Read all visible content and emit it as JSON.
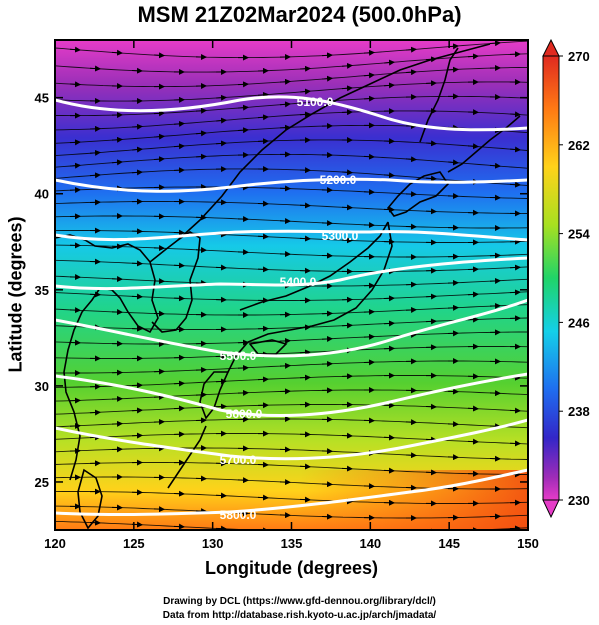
{
  "title": "MSM 21Z02Mar2024 (500.0hPa)",
  "xaxis": {
    "label": "Longitude (degrees)",
    "ticks": [
      "120",
      "125",
      "130",
      "135",
      "140",
      "145",
      "150"
    ]
  },
  "yaxis": {
    "label": "Latitude  (degrees)",
    "ticks": [
      "25",
      "30",
      "35",
      "40",
      "45"
    ]
  },
  "colorbar": {
    "ticks": [
      "270",
      "262",
      "254",
      "246",
      "238",
      "230"
    ],
    "range": [
      230,
      270
    ]
  },
  "contours": {
    "labels": [
      "5100.0",
      "5200.0",
      "5300.0",
      "5400.0",
      "5500.0",
      "5600.0",
      "5700.0",
      "5800.0"
    ]
  },
  "credits": {
    "line1": "Drawing by DCL (https://www.gfd-dennou.org/library/dcl/)",
    "line2": "Data from http://database.rish.kyoto-u.ac.jp/arch/jmadata/"
  },
  "chart_data": {
    "type": "heatmap",
    "field": "temperature with geopotential height contours and wind vectors",
    "xlim": [
      120,
      150
    ],
    "ylim": [
      22.5,
      48
    ],
    "color_range": [
      230,
      270
    ],
    "contours": [
      {
        "label": "5100.0",
        "lat_west": 45.2,
        "lat_east": 44.0
      },
      {
        "label": "5200.0",
        "lat_west": 41.5,
        "lat_east": 41.3
      },
      {
        "label": "5300.0",
        "lat_west": 38.7,
        "lat_east": 39.0
      },
      {
        "label": "5400.0",
        "lat_west": 35.8,
        "lat_east": 36.9
      },
      {
        "label": "5500.0",
        "lat_west": 33.8,
        "lat_east": 33.2
      },
      {
        "label": "5600.0",
        "lat_west": 31.5,
        "lat_east": 30.7
      },
      {
        "label": "5700.0",
        "lat_west": 28.0,
        "lat_east": 27.6
      },
      {
        "label": "5800.0",
        "lat_west": 23.4,
        "lat_east": 24.6
      }
    ]
  }
}
